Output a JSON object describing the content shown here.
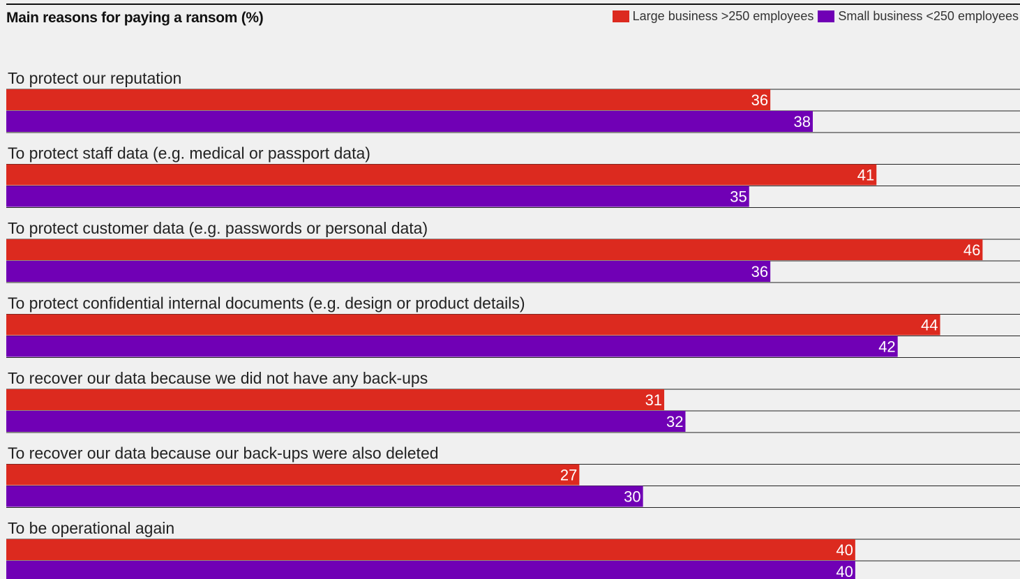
{
  "colors": {
    "large": "#dc2a1f",
    "small": "#7000b5",
    "rule": "#222222",
    "background": "#f0f0f0"
  },
  "chart_data": {
    "type": "bar",
    "orientation": "horizontal",
    "title": "Main reasons for paying a ransom (%)",
    "legend_position": "top-right",
    "grid": false,
    "xlim": [
      0,
      47.5
    ],
    "categories": [
      "To protect our reputation",
      "To protect staff data (e.g. medical or passport data)",
      "To protect customer data (e.g. passwords or personal data)",
      "To protect confidential internal documents (e.g. design or product details)",
      "To recover our data because we did not have any back-ups",
      "To recover our data because our back-ups were also deleted",
      "To be operational again"
    ],
    "series": [
      {
        "name": "Large business >250 employees",
        "color": "#dc2a1f",
        "values": [
          36,
          41,
          46,
          44,
          31,
          27,
          40
        ]
      },
      {
        "name": "Small business <250 employees",
        "color": "#7000b5",
        "values": [
          38,
          35,
          36,
          42,
          32,
          30,
          40
        ]
      }
    ]
  }
}
